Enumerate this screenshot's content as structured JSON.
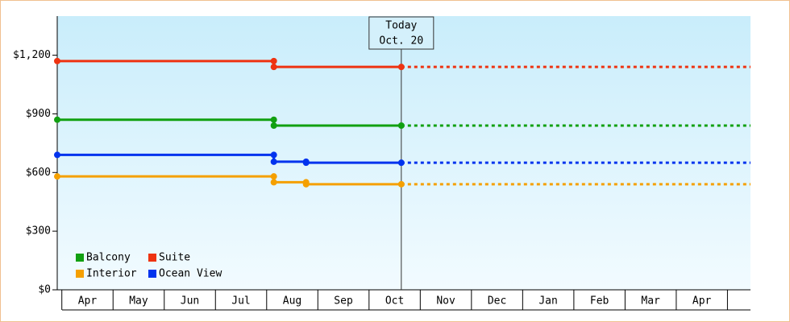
{
  "chart_data": {
    "type": "step-line",
    "xlim": [
      -0.09,
      13.45
    ],
    "xticks": [
      {
        "value": 0.5,
        "label": "Apr"
      },
      {
        "value": 1.5,
        "label": "May"
      },
      {
        "value": 2.5,
        "label": "Jun"
      },
      {
        "value": 3.5,
        "label": "Jul"
      },
      {
        "value": 4.5,
        "label": "Aug"
      },
      {
        "value": 5.5,
        "label": "Sep"
      },
      {
        "value": 6.5,
        "label": "Oct"
      },
      {
        "value": 7.5,
        "label": "Nov"
      },
      {
        "value": 8.5,
        "label": "Dec"
      },
      {
        "value": 9.5,
        "label": "Jan"
      },
      {
        "value": 10.5,
        "label": "Feb"
      },
      {
        "value": 11.5,
        "label": "Mar"
      },
      {
        "value": 12.5,
        "label": "Apr"
      }
    ],
    "ylim": [
      0,
      1400
    ],
    "yticks": [
      {
        "value": 0,
        "label": "$0"
      },
      {
        "value": 300,
        "label": "$300"
      },
      {
        "value": 600,
        "label": "$600"
      },
      {
        "value": 900,
        "label": "$900"
      },
      {
        "value": 1200,
        "label": "$1,200"
      }
    ],
    "series": [
      {
        "name": "Balcony",
        "color": "#11a011",
        "x": [
          -0.09,
          4.14,
          4.14,
          6.63
        ],
        "values": [
          870,
          870,
          840,
          840
        ]
      },
      {
        "name": "Suite",
        "color": "#ee3311",
        "x": [
          -0.09,
          4.14,
          4.14,
          6.63
        ],
        "values": [
          1170,
          1170,
          1140,
          1140
        ]
      },
      {
        "name": "Interior",
        "color": "#f5a000",
        "x": [
          -0.09,
          4.14,
          4.14,
          4.77,
          4.77,
          6.63
        ],
        "values": [
          580,
          580,
          550,
          550,
          540,
          540
        ]
      },
      {
        "name": "Ocean View",
        "color": "#0033ee",
        "x": [
          -0.09,
          4.14,
          4.14,
          4.77,
          4.77,
          6.63
        ],
        "values": [
          690,
          690,
          655,
          655,
          650,
          650
        ]
      }
    ],
    "today": {
      "x": 6.63,
      "label": [
        "Today",
        "Oct. 20"
      ]
    }
  }
}
